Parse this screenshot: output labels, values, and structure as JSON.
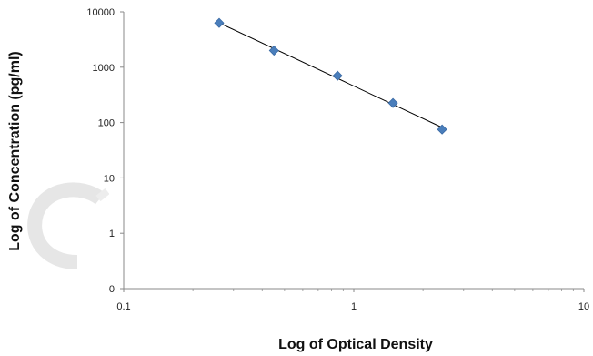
{
  "chart_data": {
    "type": "scatter",
    "title": "",
    "xlabel": "Log of Optical Density",
    "ylabel": "Log of Concentration (pg/ml)",
    "xscale": "log",
    "yscale": "log",
    "xlim": [
      0.1,
      10
    ],
    "ylim": [
      1,
      10000
    ],
    "grid": false,
    "legend": "none",
    "x_ticks": [
      {
        "label": "0.1",
        "value": 0.1
      },
      {
        "label": "1",
        "value": 1
      },
      {
        "label": "10",
        "value": 10
      }
    ],
    "y_ticks": [
      {
        "label": "0",
        "value": 0.1
      },
      {
        "label": "1",
        "value": 1
      },
      {
        "label": "10",
        "value": 10
      },
      {
        "label": "100",
        "value": 100
      },
      {
        "label": "1000",
        "value": 1000
      },
      {
        "label": "10000",
        "value": 10000
      }
    ],
    "series": [
      {
        "marker": "diamond",
        "color": "#4a7ebb",
        "points": [
          {
            "x": 0.26,
            "y": 6300
          },
          {
            "x": 0.45,
            "y": 2000
          },
          {
            "x": 0.85,
            "y": 700
          },
          {
            "x": 1.48,
            "y": 225
          },
          {
            "x": 2.42,
            "y": 75
          }
        ]
      }
    ],
    "trendline": {
      "type": "power",
      "color": "#000000",
      "x_from": 0.26,
      "x_to": 2.42
    }
  }
}
